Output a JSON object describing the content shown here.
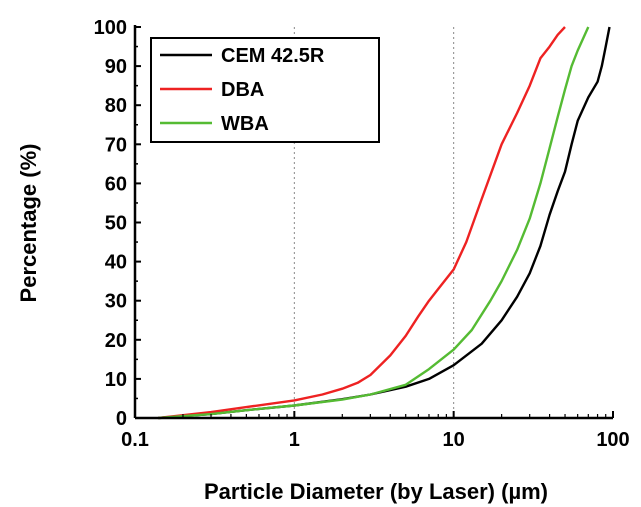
{
  "chart_data": {
    "type": "line",
    "xlabel": "Particle Diameter (by Laser) (µm)",
    "ylabel": "Percentage (%)",
    "xscale": "log",
    "xlim": [
      0.1,
      100
    ],
    "ylim": [
      0,
      100
    ],
    "xticks": [
      "0.1",
      "1",
      "10",
      "100"
    ],
    "yticks": [
      "0",
      "10",
      "20",
      "30",
      "40",
      "50",
      "60",
      "70",
      "80",
      "90",
      "100"
    ],
    "reference_lines_x": [
      1,
      10
    ],
    "legend_position": "top-left",
    "series": [
      {
        "name": "CEM 42.5R",
        "color": "#000000",
        "points": [
          [
            0.14,
            0
          ],
          [
            0.3,
            1
          ],
          [
            0.5,
            2
          ],
          [
            1,
            3.2
          ],
          [
            2,
            4.8
          ],
          [
            3,
            6
          ],
          [
            5,
            8
          ],
          [
            7,
            10
          ],
          [
            10,
            13.5
          ],
          [
            15,
            19
          ],
          [
            20,
            25
          ],
          [
            25,
            31
          ],
          [
            30,
            37
          ],
          [
            35,
            44
          ],
          [
            40,
            52
          ],
          [
            45,
            58
          ],
          [
            50,
            63
          ],
          [
            55,
            70
          ],
          [
            60,
            76
          ],
          [
            70,
            82
          ],
          [
            80,
            86
          ],
          [
            85,
            90
          ],
          [
            90,
            95
          ],
          [
            95,
            100
          ]
        ]
      },
      {
        "name": "DBA",
        "color": "#ee2222",
        "points": [
          [
            0.14,
            0
          ],
          [
            0.3,
            1.5
          ],
          [
            0.5,
            2.8
          ],
          [
            1,
            4.5
          ],
          [
            1.5,
            6
          ],
          [
            2,
            7.5
          ],
          [
            2.5,
            9
          ],
          [
            3,
            11
          ],
          [
            4,
            16
          ],
          [
            5,
            21
          ],
          [
            6,
            26
          ],
          [
            7,
            30
          ],
          [
            8,
            33
          ],
          [
            10,
            38
          ],
          [
            12,
            45
          ],
          [
            15,
            56
          ],
          [
            20,
            70
          ],
          [
            25,
            78
          ],
          [
            30,
            85
          ],
          [
            35,
            92
          ],
          [
            40,
            95
          ],
          [
            45,
            98
          ],
          [
            50,
            100
          ]
        ]
      },
      {
        "name": "WBA",
        "color": "#55bb33",
        "points": [
          [
            0.14,
            0
          ],
          [
            0.3,
            1
          ],
          [
            0.5,
            2
          ],
          [
            1,
            3.2
          ],
          [
            2,
            4.7
          ],
          [
            3,
            6
          ],
          [
            5,
            8.5
          ],
          [
            7,
            12.5
          ],
          [
            10,
            17.5
          ],
          [
            13,
            22.5
          ],
          [
            17,
            30
          ],
          [
            20,
            35
          ],
          [
            25,
            43
          ],
          [
            30,
            51
          ],
          [
            35,
            60
          ],
          [
            40,
            69
          ],
          [
            45,
            77
          ],
          [
            50,
            84
          ],
          [
            55,
            90
          ],
          [
            60,
            94
          ],
          [
            70,
            100
          ]
        ]
      }
    ]
  }
}
